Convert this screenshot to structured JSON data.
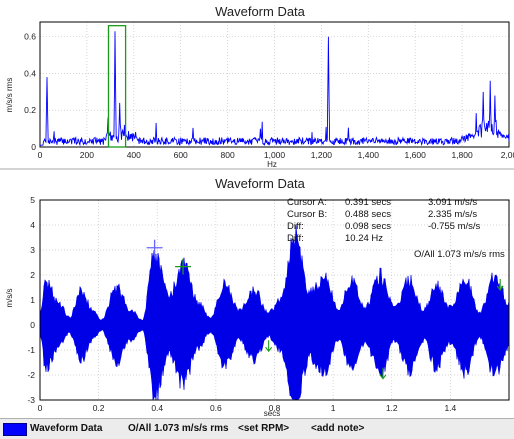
{
  "spectrum": {
    "title": "Waveform Data",
    "ylabel": "m/s/s rms",
    "xlabel": "Hz",
    "y_ticks": [
      "0",
      "0.2",
      "0.4",
      "0.6"
    ],
    "x_ticks": [
      "0",
      "200",
      "400",
      "600",
      "800",
      "1,000",
      "1,200",
      "1,400",
      "1,600",
      "1,800",
      "2,00"
    ]
  },
  "waveform": {
    "title": "Waveform Data",
    "ylabel": "m/s/s",
    "xlabel": "secs",
    "y_ticks": [
      "5",
      "4",
      "3",
      "2",
      "1",
      "0",
      "-1",
      "-2",
      "-3"
    ],
    "x_ticks": [
      "0",
      "0.2",
      "0.4",
      "0.6",
      "0.8",
      "1",
      "1.2",
      "1.4"
    ],
    "cursor_info": {
      "a_label": "Cursor A:",
      "a_time": "0.391 secs",
      "a_value": "3.091 m/s/s",
      "b_label": "Cursor B:",
      "b_time": "0.488 secs",
      "b_value": "2.335 m/s/s",
      "diff_label": "Diff:",
      "diff_time": "0.098 secs",
      "diff_value": "-0.755 m/s/s",
      "diff2_label": "Diff:",
      "diff_freq": "10.24 Hz"
    },
    "overall": "O/All 1.073 m/s/s rms"
  },
  "statusbar": {
    "legend_name": "Waveform Data",
    "overall": "O/All 1.073 m/s/s rms",
    "set_rpm": "<set RPM>",
    "add_note": "<add note>"
  },
  "chart_data": [
    {
      "type": "line",
      "title": "Waveform Data",
      "xlabel": "Hz",
      "ylabel": "m/s/s rms",
      "xlim": [
        0,
        2000
      ],
      "ylim": [
        0,
        0.68
      ],
      "grid": true,
      "color": "#0000ff",
      "peaks": [
        {
          "x": 30,
          "y": 0.38
        },
        {
          "x": 290,
          "y": 0.16
        },
        {
          "x": 320,
          "y": 0.63
        },
        {
          "x": 340,
          "y": 0.24
        },
        {
          "x": 360,
          "y": 0.12
        },
        {
          "x": 940,
          "y": 0.1
        },
        {
          "x": 1230,
          "y": 0.6
        },
        {
          "x": 1890,
          "y": 0.3
        },
        {
          "x": 1920,
          "y": 0.36
        },
        {
          "x": 1940,
          "y": 0.28
        }
      ],
      "noise_floor": 0.04
    },
    {
      "type": "line",
      "title": "Waveform Data",
      "xlabel": "secs",
      "ylabel": "m/s/s",
      "xlim": [
        0,
        1.6
      ],
      "ylim": [
        -3,
        5
      ],
      "grid": true,
      "color": "#0000ff",
      "envelope": [
        {
          "t": 0.0,
          "a": 0.5
        },
        {
          "t": 0.02,
          "a": 1.7
        },
        {
          "t": 0.07,
          "a": 0.8
        },
        {
          "t": 0.1,
          "a": 0.3
        },
        {
          "t": 0.14,
          "a": 1.4
        },
        {
          "t": 0.18,
          "a": 0.6
        },
        {
          "t": 0.21,
          "a": 0.2
        },
        {
          "t": 0.26,
          "a": 1.5
        },
        {
          "t": 0.31,
          "a": 0.6
        },
        {
          "t": 0.35,
          "a": 0.2
        },
        {
          "t": 0.39,
          "a": 2.9
        },
        {
          "t": 0.44,
          "a": 1.2
        },
        {
          "t": 0.49,
          "a": 2.4
        },
        {
          "t": 0.54,
          "a": 0.9
        },
        {
          "t": 0.58,
          "a": 0.3
        },
        {
          "t": 0.63,
          "a": 1.6
        },
        {
          "t": 0.68,
          "a": 0.6
        },
        {
          "t": 0.73,
          "a": 1.4
        },
        {
          "t": 0.78,
          "a": 0.5
        },
        {
          "t": 0.82,
          "a": 1.0
        },
        {
          "t": 0.87,
          "a": 3.5
        },
        {
          "t": 0.92,
          "a": 1.3
        },
        {
          "t": 0.97,
          "a": 1.9
        },
        {
          "t": 1.02,
          "a": 0.6
        },
        {
          "t": 1.06,
          "a": 1.8
        },
        {
          "t": 1.11,
          "a": 0.7
        },
        {
          "t": 1.16,
          "a": 2.0
        },
        {
          "t": 1.21,
          "a": 0.7
        },
        {
          "t": 1.26,
          "a": 1.8
        },
        {
          "t": 1.31,
          "a": 0.6
        },
        {
          "t": 1.35,
          "a": 1.7
        },
        {
          "t": 1.4,
          "a": 0.7
        },
        {
          "t": 1.45,
          "a": 1.9
        },
        {
          "t": 1.5,
          "a": 0.5
        },
        {
          "t": 1.55,
          "a": 2.0
        },
        {
          "t": 1.6,
          "a": 0.9
        }
      ],
      "cursors": [
        {
          "name": "Cursor A",
          "t": 0.391,
          "y": 3.091
        },
        {
          "name": "Cursor B",
          "t": 0.488,
          "y": 2.335
        }
      ],
      "markers": [
        {
          "t": 0.78,
          "y": -0.85
        },
        {
          "t": 1.17,
          "y": -1.95
        },
        {
          "t": 1.57,
          "y": 1.6
        }
      ]
    }
  ]
}
